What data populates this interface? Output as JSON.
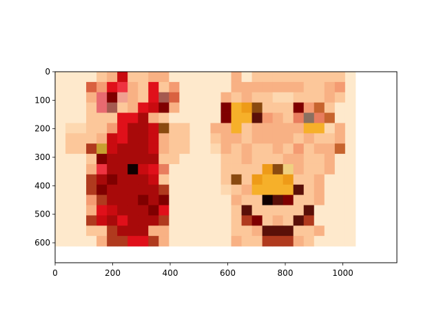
{
  "chart_data": {
    "type": "heatmap",
    "title": "",
    "xlabel": "",
    "ylabel": "",
    "xlim": [
      0,
      1188
    ],
    "ylim": [
      670,
      0
    ],
    "x_ticks": [
      "0",
      "200",
      "400",
      "600",
      "800",
      "1000"
    ],
    "y_ticks": [
      "0",
      "100",
      "200",
      "300",
      "400",
      "500",
      "600"
    ],
    "x_tick_values": [
      0,
      200,
      400,
      600,
      800,
      1000
    ],
    "y_tick_values": [
      0,
      100,
      200,
      300,
      400,
      500,
      600
    ],
    "grid": false,
    "colormap": "OrRd",
    "cell_size": 36,
    "palette": {
      ".": "#fee9cc",
      "a": "#fdd8b0",
      "b": "#fcc79a",
      "c": "#f8b184",
      "d": "#f49b72",
      "e": "#e87d5e",
      "f": "#d96140",
      "g": "#c7642e",
      "h": "#b03a1e",
      "r": "#ee3340",
      "R": "#e0101a",
      "m": "#c90b10",
      "M": "#a80a0a",
      "D": "#7f0000",
      "k": "#100000",
      "o": "#f6b02a",
      "O": "#ee9b18",
      "y": "#f0d080",
      "Y": "#c8a030",
      "n": "#8a4a10",
      "N": "#5a1008",
      "p": "#e86a70",
      "P": "#f0a090",
      "s": "#a55a50",
      "t": "#8a7060"
    },
    "rows": [
      "....bcmbbcc......c.bbbbbbbbb.",
      "...fdRrcbRbd.....cccccccbbcd.",
      "...cpDPcbRsf....cbcbbaabbbcb.",
      "...bpsbcRmDc....DoOnbbbDdgb..",
      "...bbbRRMcb.....DooNdcbeteg..",
      ".aabbdRMMmnbb..ccobcccccooac.",
      ".bbbcmRMMmcbb..bccbccccbcbbc.",
      ".bbhYmMMMmcbb..acbcbbcbdbccg.",
      "...bDMMMMMbb....bbcbbbccbbc..",
      "...crMMkmRe.....bbbbOnycbbc..",
      "...hMDMMMmb.....bnbOooObbc...",
      "...hDMMMMMh.....abcooooNbc...",
      "...dhMMMDMD......cbbkNDbbc...",
      "...cRmMMMDR......bNbbbbbN....",
      "...hmMRMMMh......bhDbcbNh....",
      "...bbhMMMcc......bbcNNNbbc...",
      "....chhRRhc......cbbhhhcb...."
    ]
  }
}
